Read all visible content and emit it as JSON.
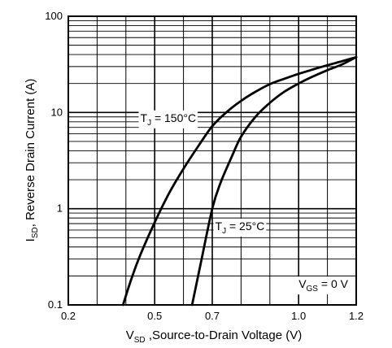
{
  "chart_data": {
    "type": "line",
    "y_scale": "log",
    "grid": true,
    "xlim": [
      0.2,
      1.2
    ],
    "ylim": [
      0.1,
      100
    ],
    "x_ticks": [
      0.2,
      0.3,
      0.4,
      0.5,
      0.6,
      0.7,
      0.8,
      0.9,
      1.0,
      1.1,
      1.2
    ],
    "x_tick_labels": [
      "0.2",
      "0.5",
      "0.7",
      "1.0",
      "1.2"
    ],
    "x_tick_label_values": [
      0.2,
      0.5,
      0.7,
      1.0,
      1.2
    ],
    "y_tick_labels": [
      "0.1",
      "1",
      "10",
      "100"
    ],
    "y_tick_label_values": [
      0.1,
      1,
      10,
      100
    ],
    "xlabel": {
      "main": "V",
      "sub": "SD",
      "rest": " ,Source-to-Drain Voltage (V)"
    },
    "ylabel": {
      "main": "I",
      "sub": "SD",
      "rest": ", Reverse Drain Current (A)"
    },
    "series": [
      {
        "x": [
          0.39,
          0.42,
          0.45,
          0.5,
          0.55,
          0.6,
          0.65,
          0.7,
          0.75,
          0.8,
          0.85,
          0.9,
          0.95,
          1.0,
          1.05,
          1.1,
          1.15,
          1.2
        ],
        "y": [
          0.1,
          0.19,
          0.33,
          0.72,
          1.45,
          2.6,
          4.4,
          7.2,
          10.1,
          13.2,
          16.4,
          19.7,
          22.4,
          25.2,
          28.0,
          31.0,
          34.0,
          37.6
        ]
      },
      {
        "x": [
          0.63,
          0.66,
          0.7,
          0.73,
          0.77,
          0.8,
          0.85,
          0.9,
          0.95,
          1.0,
          1.05,
          1.1,
          1.15,
          1.2
        ],
        "y": [
          0.1,
          0.27,
          1.0,
          1.9,
          3.6,
          5.6,
          9.0,
          12.6,
          16.4,
          20.0,
          23.7,
          27.5,
          31.5,
          37.6
        ]
      }
    ],
    "annotations": [
      {
        "main": "T",
        "sub": "J",
        "rest": " = 150°C",
        "x": 0.45,
        "y": 8.0
      },
      {
        "main": "T",
        "sub": "J",
        "rest": " = 25°C",
        "x": 0.71,
        "y": 0.6
      },
      {
        "main": "V",
        "sub": "GS",
        "rest": " = 0 V",
        "x": 1.0,
        "y": 0.15
      }
    ]
  }
}
